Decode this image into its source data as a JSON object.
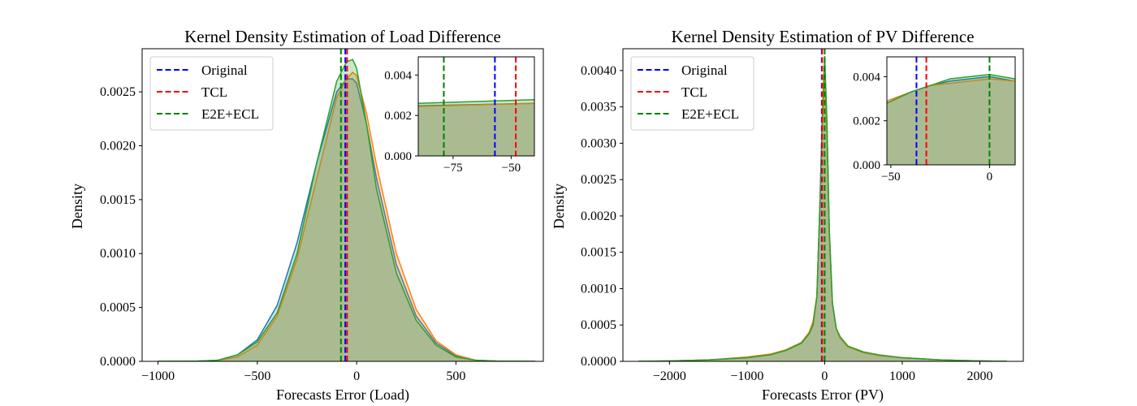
{
  "chart_data": [
    {
      "type": "area",
      "title": "Kernel Density Estimation of Load Difference",
      "xlabel": "Forecasts Error (Load)",
      "ylabel": "Density",
      "xlim": [
        -1080,
        940
      ],
      "ylim": [
        0,
        0.0029
      ],
      "xticks": [
        -1000,
        -500,
        0,
        500
      ],
      "xtick_labels": [
        "−1000",
        "−500",
        "0",
        "500"
      ],
      "yticks": [
        0,
        0.0005,
        0.001,
        0.0015,
        0.002,
        0.0025
      ],
      "ytick_labels": [
        "0.0000",
        "0.0005",
        "0.0010",
        "0.0015",
        "0.0020",
        "0.0025"
      ],
      "legend": {
        "placement": "upper-left",
        "entries": [
          {
            "label": "Original",
            "color": "#0000ff",
            "style": "dashed"
          },
          {
            "label": "TCL",
            "color": "#ff0000",
            "style": "dashed"
          },
          {
            "label": "E2E+ECL",
            "color": "#008000",
            "style": "dashed"
          }
        ]
      },
      "vlines": [
        {
          "series": "Original",
          "x": -57,
          "color": "#0000ff"
        },
        {
          "series": "TCL",
          "x": -48,
          "color": "#ff0000"
        },
        {
          "series": "E2E+ECL",
          "x": -79,
          "color": "#008000"
        }
      ],
      "series": [
        {
          "color": "#1f77b4",
          "x": [
            -1000,
            -800,
            -700,
            -600,
            -500,
            -400,
            -300,
            -200,
            -100,
            -50,
            -20,
            0,
            50,
            100,
            200,
            300,
            400,
            500,
            600,
            700,
            900
          ],
          "values": [
            0,
            2e-06,
            1e-05,
            6e-05,
            0.0002,
            0.00052,
            0.0011,
            0.00185,
            0.0025,
            0.00262,
            0.00262,
            0.00258,
            0.0022,
            0.0017,
            0.0009,
            0.00042,
            0.00017,
            5e-05,
            1e-05,
            3e-06,
            0
          ]
        },
        {
          "color": "#ff7f0e",
          "x": [
            -1000,
            -800,
            -700,
            -600,
            -500,
            -400,
            -300,
            -200,
            -100,
            -50,
            -20,
            0,
            50,
            100,
            200,
            300,
            400,
            500,
            600,
            700,
            900
          ],
          "values": [
            0,
            2e-06,
            8e-06,
            4e-05,
            0.00015,
            0.00042,
            0.00095,
            0.0017,
            0.00245,
            0.00262,
            0.00268,
            0.00265,
            0.0023,
            0.00182,
            0.001,
            0.00048,
            0.00019,
            6e-05,
            1e-05,
            3e-06,
            0
          ]
        },
        {
          "color": "#2ca02c",
          "x": [
            -1000,
            -800,
            -700,
            -600,
            -500,
            -400,
            -300,
            -200,
            -100,
            -50,
            -20,
            0,
            50,
            100,
            200,
            300,
            400,
            500,
            600,
            700,
            900
          ],
          "values": [
            0,
            3e-06,
            1e-05,
            6e-05,
            0.00018,
            0.00045,
            0.001,
            0.00185,
            0.0026,
            0.00278,
            0.0028,
            0.00272,
            0.0022,
            0.0016,
            0.00082,
            0.00038,
            0.00015,
            4e-05,
            1e-05,
            3e-06,
            0
          ]
        }
      ],
      "inset": {
        "xlim": [
          -90,
          -40
        ],
        "ylim": [
          0,
          0.0049
        ],
        "xticks": [
          -75,
          -50
        ],
        "xtick_labels": [
          "−75",
          "−50"
        ],
        "yticks": [
          0,
          0.002,
          0.004
        ],
        "ytick_labels": [
          "0.000",
          "0.002",
          "0.004"
        ],
        "series": [
          {
            "color": "#1f77b4",
            "x": [
              -90,
              -40
            ],
            "values": [
              0.00248,
              0.0026
            ]
          },
          {
            "color": "#ff7f0e",
            "x": [
              -90,
              -40
            ],
            "values": [
              0.00245,
              0.0026
            ]
          },
          {
            "color": "#2ca02c",
            "x": [
              -90,
              -40
            ],
            "values": [
              0.0026,
              0.00278
            ]
          }
        ]
      }
    },
    {
      "type": "area",
      "title": "Kernel Density Estimation of PV Difference",
      "xlabel": "Forecasts Error (PV)",
      "ylabel": "Density",
      "xlim": [
        -2600,
        2560
      ],
      "ylim": [
        0,
        0.0043
      ],
      "xticks": [
        -2000,
        -1000,
        0,
        1000,
        2000
      ],
      "xtick_labels": [
        "−2000",
        "−1000",
        "0",
        "1000",
        "2000"
      ],
      "yticks": [
        0,
        0.0005,
        0.001,
        0.0015,
        0.002,
        0.0025,
        0.003,
        0.0035,
        0.004
      ],
      "ytick_labels": [
        "0.0000",
        "0.0005",
        "0.0010",
        "0.0015",
        "0.0020",
        "0.0025",
        "0.0030",
        "0.0035",
        "0.0040"
      ],
      "legend": {
        "placement": "upper-left",
        "entries": [
          {
            "label": "Original",
            "color": "#0000ff",
            "style": "dashed"
          },
          {
            "label": "TCL",
            "color": "#ff0000",
            "style": "dashed"
          },
          {
            "label": "E2E+ECL",
            "color": "#008000",
            "style": "dashed"
          }
        ]
      },
      "vlines": [
        {
          "series": "Original",
          "x": -37,
          "color": "#0000ff"
        },
        {
          "series": "TCL",
          "x": -32,
          "color": "#ff0000"
        },
        {
          "series": "E2E+ECL",
          "x": 0,
          "color": "#008000"
        }
      ],
      "series": [
        {
          "color": "#1f77b4",
          "x": [
            -2400,
            -2000,
            -1500,
            -1000,
            -700,
            -500,
            -300,
            -200,
            -150,
            -100,
            -60,
            -30,
            0,
            30,
            60,
            100,
            150,
            200,
            300,
            500,
            700,
            1000,
            1500,
            2000,
            2350
          ],
          "values": [
            0,
            5e-06,
            2e-05,
            5e-05,
            9e-05,
            0.00015,
            0.00025,
            0.00038,
            0.0005,
            0.0009,
            0.0022,
            0.0033,
            0.0041,
            0.0032,
            0.0018,
            0.0008,
            0.00045,
            0.00032,
            0.0002,
            0.00012,
            8e-05,
            5e-05,
            2e-05,
            5e-06,
            0
          ]
        },
        {
          "color": "#ff7f0e",
          "x": [
            -2400,
            -2000,
            -1500,
            -1000,
            -700,
            -500,
            -300,
            -200,
            -150,
            -100,
            -60,
            -30,
            0,
            30,
            60,
            100,
            150,
            200,
            300,
            500,
            700,
            1000,
            1500,
            2000,
            2350
          ],
          "values": [
            0,
            5e-06,
            2e-05,
            6e-05,
            0.0001,
            0.00016,
            0.00026,
            0.0004,
            0.00055,
            0.0009,
            0.0022,
            0.0033,
            0.004,
            0.0031,
            0.0017,
            0.0008,
            0.00045,
            0.00032,
            0.0002,
            0.00012,
            8e-05,
            5e-05,
            2e-05,
            5e-06,
            0
          ]
        },
        {
          "color": "#2ca02c",
          "x": [
            -2400,
            -2000,
            -1500,
            -1000,
            -700,
            -500,
            -300,
            -200,
            -150,
            -100,
            -60,
            -30,
            0,
            30,
            60,
            100,
            150,
            200,
            300,
            500,
            700,
            1000,
            1500,
            2000,
            2350
          ],
          "values": [
            0,
            5e-06,
            2e-05,
            5e-05,
            9e-05,
            0.00015,
            0.00025,
            0.00038,
            0.0005,
            0.0009,
            0.0022,
            0.0034,
            0.0042,
            0.0033,
            0.0018,
            0.0008,
            0.00045,
            0.00034,
            0.00021,
            0.00013,
            9e-05,
            5e-05,
            2e-05,
            5e-06,
            0
          ]
        }
      ],
      "inset": {
        "xlim": [
          -52,
          13
        ],
        "ylim": [
          0,
          0.0049
        ],
        "xticks": [
          -50,
          0
        ],
        "xtick_labels": [
          "−50",
          "0"
        ],
        "yticks": [
          0,
          0.002,
          0.004
        ],
        "ytick_labels": [
          "0.000",
          "0.002",
          "0.004"
        ],
        "series": [
          {
            "color": "#1f77b4",
            "x": [
              -52,
              -40,
              -30,
              -20,
              -10,
              0,
              13
            ],
            "values": [
              0.0028,
              0.0033,
              0.0036,
              0.0038,
              0.0039,
              0.004,
              0.0038
            ]
          },
          {
            "color": "#ff7f0e",
            "x": [
              -52,
              -40,
              -30,
              -20,
              -10,
              0,
              13
            ],
            "values": [
              0.0029,
              0.0033,
              0.0036,
              0.0037,
              0.0038,
              0.0039,
              0.0038
            ]
          },
          {
            "color": "#2ca02c",
            "x": [
              -52,
              -40,
              -30,
              -20,
              -10,
              0,
              13
            ],
            "values": [
              0.0028,
              0.0033,
              0.0036,
              0.0039,
              0.004,
              0.0041,
              0.0039
            ]
          }
        ]
      }
    }
  ]
}
